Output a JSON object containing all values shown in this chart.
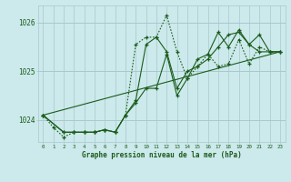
{
  "title": "Graphe pression niveau de la mer (hPa)",
  "bg_color": "#cce9ec",
  "line_color": "#1a5c1a",
  "grid_color": "#a8c8cc",
  "axis_label_color": "#1a5c1a",
  "xlim": [
    -0.5,
    23.5
  ],
  "ylim": [
    1023.55,
    1026.35
  ],
  "xticks": [
    0,
    1,
    2,
    3,
    4,
    5,
    6,
    7,
    8,
    9,
    10,
    11,
    12,
    13,
    14,
    15,
    16,
    17,
    18,
    19,
    20,
    21,
    22,
    23
  ],
  "yticks": [
    1024,
    1025,
    1026
  ],
  "series": [
    {
      "x": [
        0,
        1,
        2,
        3,
        4,
        5,
        6,
        7,
        8,
        9,
        10,
        11,
        12,
        13,
        14,
        15,
        16,
        17,
        18,
        19,
        20,
        21,
        22,
        23
      ],
      "y": [
        1024.1,
        1023.85,
        1023.65,
        1023.75,
        1023.75,
        1023.75,
        1023.8,
        1023.75,
        1024.1,
        1025.55,
        1025.7,
        1025.7,
        1026.15,
        1025.4,
        1024.85,
        1025.1,
        1025.35,
        1025.1,
        1025.15,
        1025.65,
        1025.15,
        1025.5,
        1025.4,
        1025.4
      ],
      "style": "dotted",
      "marker": "+"
    },
    {
      "x": [
        0,
        2,
        3,
        4,
        5,
        6,
        7,
        8,
        9,
        10,
        11,
        12,
        13,
        14,
        15,
        16,
        17,
        18,
        19,
        20,
        21,
        22,
        23
      ],
      "y": [
        1024.1,
        1023.75,
        1023.75,
        1023.75,
        1023.75,
        1023.8,
        1023.75,
        1024.1,
        1024.4,
        1025.55,
        1025.7,
        1025.4,
        1024.65,
        1025.0,
        1025.1,
        1025.25,
        1025.5,
        1025.75,
        1025.8,
        1025.55,
        1025.4,
        1025.4,
        1025.4
      ],
      "style": "solid",
      "marker": "+"
    },
    {
      "x": [
        0,
        2,
        3,
        4,
        5,
        6,
        7,
        8,
        9,
        10,
        11,
        12,
        13,
        14,
        15,
        16,
        17,
        18,
        19,
        20,
        21,
        22,
        23
      ],
      "y": [
        1024.1,
        1023.75,
        1023.75,
        1023.75,
        1023.75,
        1023.8,
        1023.75,
        1024.1,
        1024.35,
        1024.65,
        1024.65,
        1025.35,
        1024.5,
        1024.85,
        1025.25,
        1025.35,
        1025.8,
        1025.5,
        1025.85,
        1025.55,
        1025.75,
        1025.4,
        1025.4
      ],
      "style": "solid",
      "marker": "+"
    },
    {
      "x": [
        0,
        23
      ],
      "y": [
        1024.1,
        1025.4
      ],
      "style": "solid",
      "marker": null
    }
  ]
}
